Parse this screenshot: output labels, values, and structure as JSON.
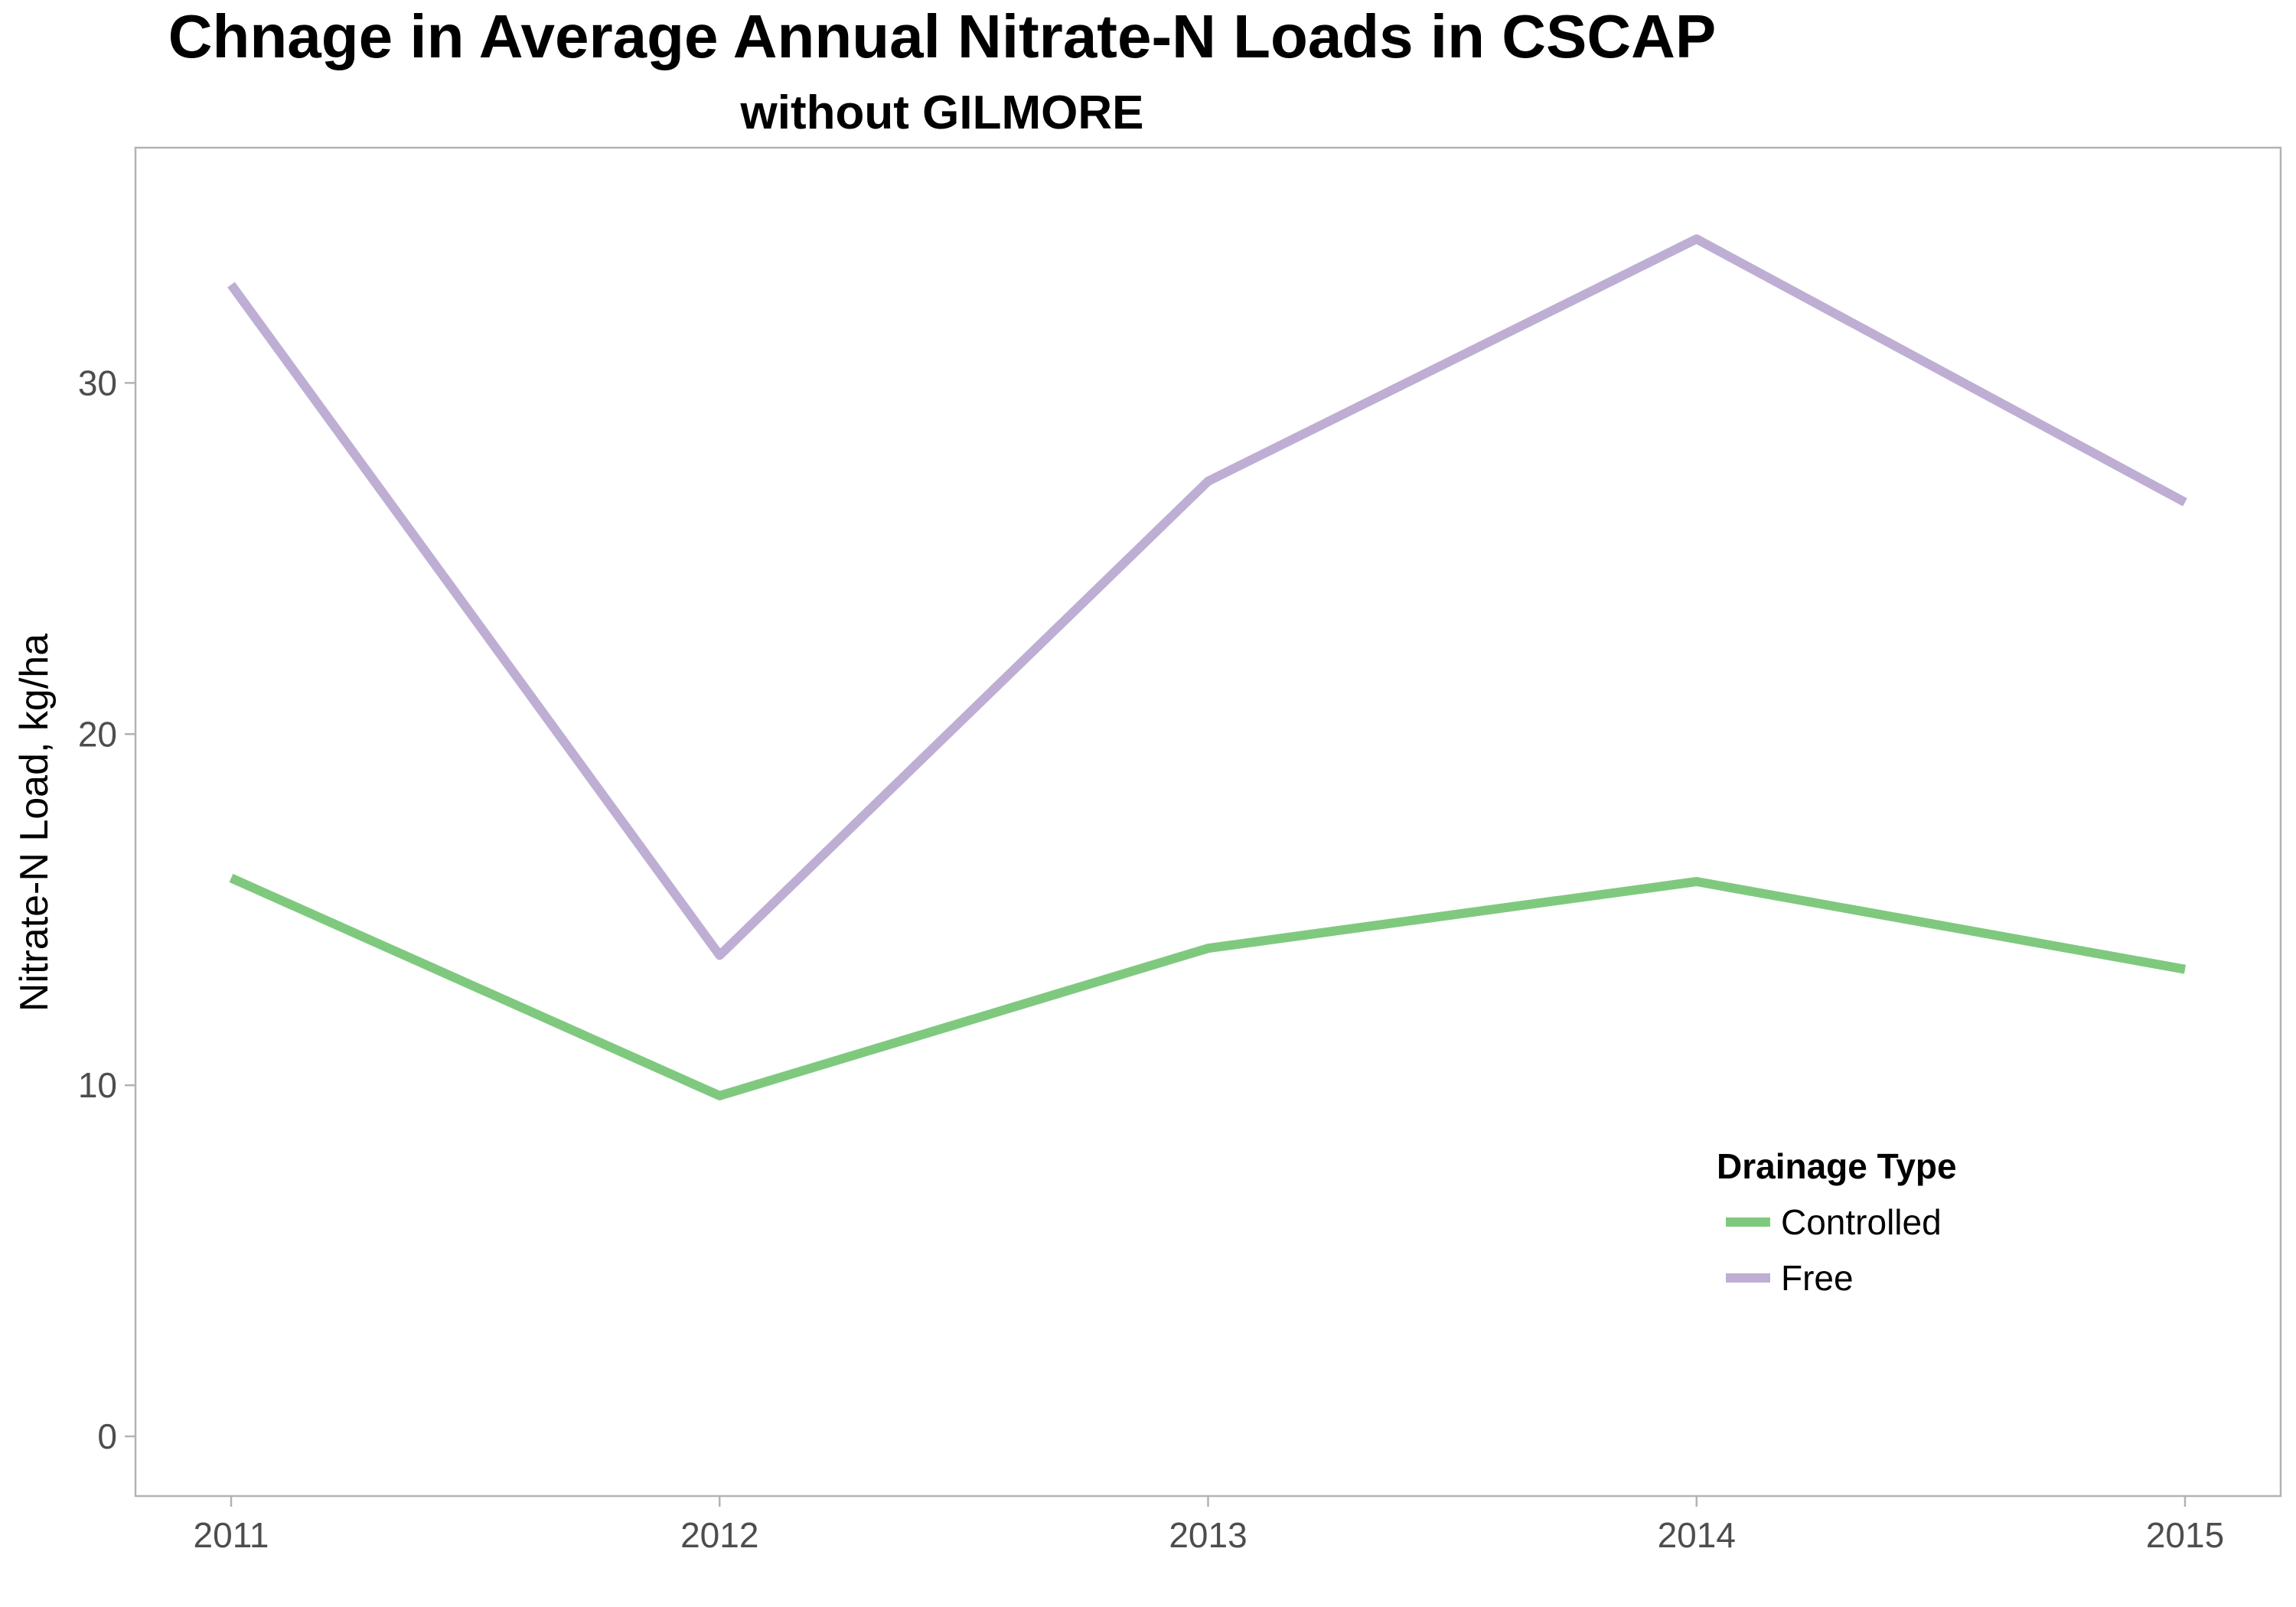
{
  "chart_data": {
    "type": "line",
    "title": "Chnage in Average Annual Nitrate-N Loads in CSCAP",
    "subtitle": "without GILMORE",
    "xlabel": "",
    "ylabel": "Nitrate-N Load, kg/ha",
    "x": [
      "2011",
      "2012",
      "2013",
      "2014",
      "2015"
    ],
    "y_ticks": [
      "0",
      "10",
      "20",
      "30"
    ],
    "ylim": [
      -1.7,
      36.7
    ],
    "grid": false,
    "legend": {
      "title": "Drainage Type",
      "position": "bottom-right inside"
    },
    "series": [
      {
        "name": "Controlled",
        "color": "#7fc97f",
        "values": [
          15.9,
          9.7,
          13.9,
          15.8,
          13.3
        ]
      },
      {
        "name": "Free",
        "color": "#beaed4",
        "values": [
          32.8,
          13.7,
          27.2,
          34.1,
          26.6
        ]
      }
    ]
  }
}
